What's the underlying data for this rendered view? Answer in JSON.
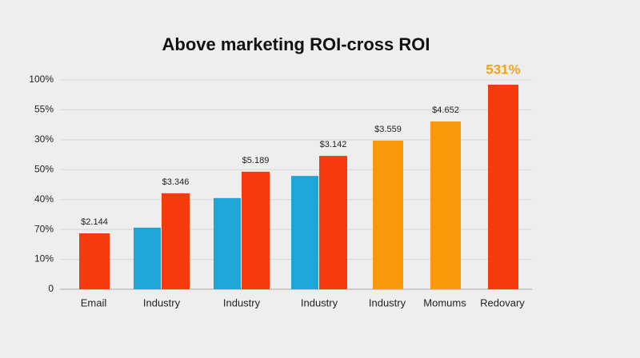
{
  "chart_data": {
    "type": "bar",
    "title": "Above marketing ROI-cross ROI",
    "categories": [
      "Email",
      "Industry",
      "Industry",
      "Industry",
      "Industry",
      "Momums",
      "Redovary"
    ],
    "ylim": [
      0,
      7
    ],
    "yticks": [
      {
        "value": 0,
        "label": "0"
      },
      {
        "value": 1,
        "label": "10%"
      },
      {
        "value": 2,
        "label": "70%"
      },
      {
        "value": 3,
        "label": "40%"
      },
      {
        "value": 4,
        "label": "50%"
      },
      {
        "value": 5,
        "label": "30%"
      },
      {
        "value": 6,
        "label": "55%"
      },
      {
        "value": 7,
        "label": "100%"
      }
    ],
    "grid": true,
    "series": [
      {
        "color": "#1ea6d6",
        "values": [
          null,
          2.06,
          3.05,
          3.79,
          null,
          null,
          null
        ]
      },
      {
        "colors": [
          "#f53a0e",
          "#f53a0e",
          "#f53a0e",
          "#f53a0e",
          "#f99a0c",
          "#f99a0c",
          "#f53a0e"
        ],
        "values": [
          1.87,
          3.21,
          3.93,
          4.46,
          4.97,
          5.61,
          6.84
        ]
      }
    ],
    "annotations": [
      "$2.144",
      "$3.346",
      "$5.189",
      "$3.142",
      "$3.559",
      "$4.652",
      "531%"
    ]
  }
}
